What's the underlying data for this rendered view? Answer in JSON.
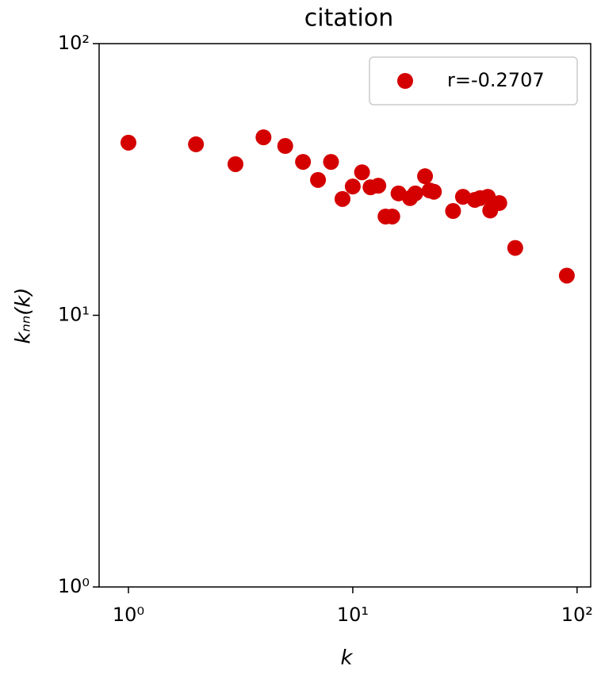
{
  "chart_data": {
    "type": "scatter",
    "title": "citation",
    "xlabel": "k",
    "ylabel": "kₙₙ(k)",
    "xscale": "log",
    "yscale": "log",
    "xlim": [
      0.74,
      115
    ],
    "ylim": [
      1,
      100
    ],
    "xticks": [
      {
        "value": 1,
        "label": "10⁰"
      },
      {
        "value": 10,
        "label": "10¹"
      },
      {
        "value": 100,
        "label": "10²"
      }
    ],
    "yticks": [
      {
        "value": 1,
        "label": "10⁰"
      },
      {
        "value": 10,
        "label": "10¹"
      },
      {
        "value": 100,
        "label": "10²"
      }
    ],
    "legend": "upper right",
    "series": [
      {
        "name": "r=-0.2707",
        "color": "#d40000",
        "x": [
          1,
          2,
          3,
          4,
          5,
          6,
          7,
          8,
          9,
          10,
          11,
          12,
          13,
          14,
          15,
          16,
          18,
          19,
          21,
          22,
          23,
          28,
          31,
          35,
          37,
          40,
          41,
          45,
          53,
          90
        ],
        "values": [
          43.2,
          42.6,
          36,
          45.2,
          42,
          36.7,
          31.5,
          36.7,
          26.8,
          29.8,
          33.6,
          29.6,
          30,
          23.1,
          23.1,
          28.1,
          27,
          28.1,
          32.5,
          28.8,
          28.5,
          24.2,
          27.3,
          26.6,
          27,
          27.3,
          24.3,
          25.9,
          17.7,
          14
        ]
      }
    ]
  }
}
